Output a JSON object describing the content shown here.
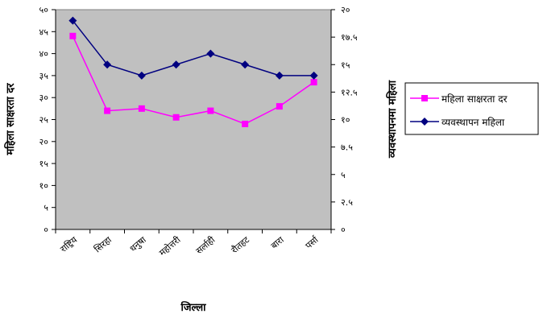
{
  "chart_data": {
    "type": "line",
    "categories": [
      "राष्ट्रिय",
      "सिरहा",
      "धनुषा",
      "महोत्तरी",
      "सर्लाही",
      "रौतहट",
      "बारा",
      "पर्सा"
    ],
    "xlabel": "जिल्ला",
    "y_left_label": "महिला साक्षरता दर",
    "y_right_label": "व्यवस्थापनमा महिला",
    "y_left_lim": [
      0,
      50
    ],
    "y_right_lim": [
      0,
      20
    ],
    "y_left_ticks": [
      "०",
      "५",
      "१०",
      "१५",
      "२०",
      "२५",
      "३०",
      "३५",
      "४०",
      "४५",
      "५०"
    ],
    "y_right_ticks": [
      "०",
      "२.५",
      "५",
      "७.५",
      "१०",
      "१२.५",
      "१५",
      "१७.५",
      "२०"
    ],
    "plot_background": "#c0c0c0",
    "grid": false,
    "legend_position": "right",
    "series": [
      {
        "name": "महिला साक्षरता दर",
        "axis": "left",
        "color": "#ff00ff",
        "marker": "square",
        "values": [
          44,
          27,
          27.5,
          25.5,
          27,
          24,
          28,
          33.5
        ]
      },
      {
        "name": "व्यवस्थापन महिला",
        "axis": "right",
        "color": "#000080",
        "marker": "diamond",
        "values": [
          19,
          15,
          14,
          15,
          16,
          15,
          14,
          14
        ]
      }
    ]
  }
}
